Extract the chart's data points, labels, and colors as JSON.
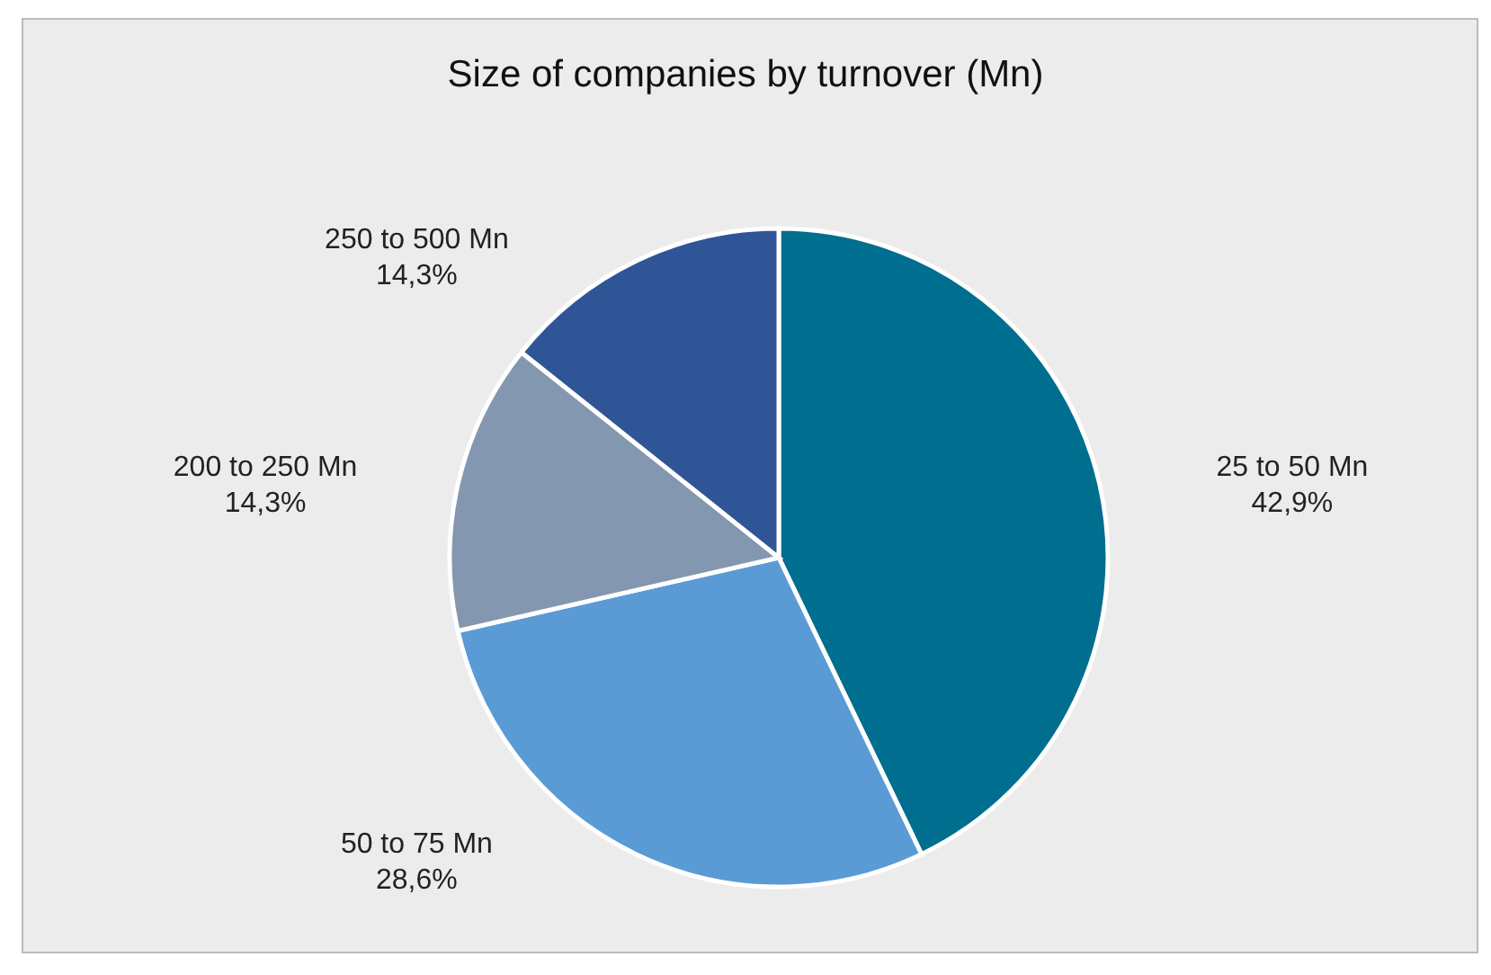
{
  "chart_data": {
    "type": "pie",
    "title": "Size of companies by turnover (Mn)",
    "categories": [
      "25 to 50 Mn",
      "50 to 75 Mn",
      "200 to 250 Mn",
      "250 to 500 Mn"
    ],
    "values": [
      42.9,
      28.6,
      14.3,
      14.3
    ],
    "value_labels": [
      "42,9%",
      "28,6%",
      "14,3%",
      "14,3%"
    ],
    "colors": [
      "#006e8f",
      "#5b9bd5",
      "#8497b0",
      "#2f5597"
    ],
    "legend": false
  }
}
